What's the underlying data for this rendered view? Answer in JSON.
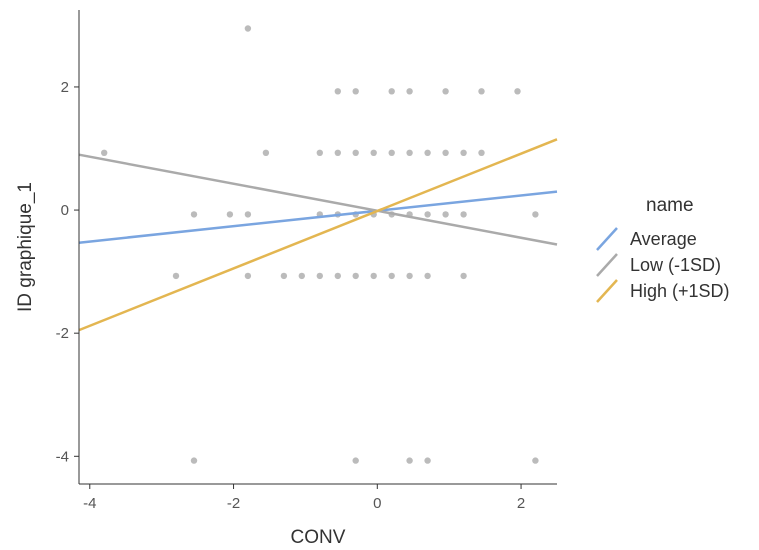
{
  "chart_data": {
    "type": "scatter",
    "xlabel": "CONV",
    "ylabel": "ID graphique_1",
    "xlim": [
      -4.15,
      2.5
    ],
    "ylim": [
      -4.45,
      3.25
    ],
    "x_ticks": [
      -4,
      -2,
      0,
      2
    ],
    "y_ticks": [
      -4,
      -2,
      0,
      2
    ],
    "x_tick_labels": [
      "-4",
      "-2",
      "0",
      "2"
    ],
    "y_tick_labels": [
      "-4",
      "-2",
      "0",
      "2"
    ],
    "grid": false,
    "legend": {
      "title": "name",
      "position": "right",
      "entries": [
        "Average",
        "Low (-1SD)",
        "High (+1SD)"
      ]
    },
    "points": [
      {
        "x": -3.8,
        "y": 0.93
      },
      {
        "x": -1.8,
        "y": 2.95
      },
      {
        "x": -0.55,
        "y": 1.93
      },
      {
        "x": -0.3,
        "y": 1.93
      },
      {
        "x": 0.2,
        "y": 1.93
      },
      {
        "x": 0.45,
        "y": 1.93
      },
      {
        "x": 0.95,
        "y": 1.93
      },
      {
        "x": 1.45,
        "y": 1.93
      },
      {
        "x": 1.95,
        "y": 1.93
      },
      {
        "x": -1.55,
        "y": 0.93
      },
      {
        "x": -0.8,
        "y": 0.93
      },
      {
        "x": -0.55,
        "y": 0.93
      },
      {
        "x": -0.3,
        "y": 0.93
      },
      {
        "x": -0.05,
        "y": 0.93
      },
      {
        "x": 0.2,
        "y": 0.93
      },
      {
        "x": 0.45,
        "y": 0.93
      },
      {
        "x": 0.7,
        "y": 0.93
      },
      {
        "x": 0.95,
        "y": 0.93
      },
      {
        "x": 1.2,
        "y": 0.93
      },
      {
        "x": 1.45,
        "y": 0.93
      },
      {
        "x": -2.55,
        "y": -0.07
      },
      {
        "x": -2.05,
        "y": -0.07
      },
      {
        "x": -1.8,
        "y": -0.07
      },
      {
        "x": -0.8,
        "y": -0.07
      },
      {
        "x": -0.55,
        "y": -0.07
      },
      {
        "x": -0.3,
        "y": -0.07
      },
      {
        "x": -0.05,
        "y": -0.07
      },
      {
        "x": 0.2,
        "y": -0.07
      },
      {
        "x": 0.45,
        "y": -0.07
      },
      {
        "x": 0.7,
        "y": -0.07
      },
      {
        "x": 0.95,
        "y": -0.07
      },
      {
        "x": 1.2,
        "y": -0.07
      },
      {
        "x": 2.2,
        "y": -0.07
      },
      {
        "x": -2.8,
        "y": -1.07
      },
      {
        "x": -1.8,
        "y": -1.07
      },
      {
        "x": -1.3,
        "y": -1.07
      },
      {
        "x": -1.05,
        "y": -1.07
      },
      {
        "x": -0.8,
        "y": -1.07
      },
      {
        "x": -0.55,
        "y": -1.07
      },
      {
        "x": -0.3,
        "y": -1.07
      },
      {
        "x": -0.05,
        "y": -1.07
      },
      {
        "x": 0.2,
        "y": -1.07
      },
      {
        "x": 0.45,
        "y": -1.07
      },
      {
        "x": 0.7,
        "y": -1.07
      },
      {
        "x": 1.2,
        "y": -1.07
      },
      {
        "x": -2.55,
        "y": -4.07
      },
      {
        "x": -0.3,
        "y": -4.07
      },
      {
        "x": 0.45,
        "y": -4.07
      },
      {
        "x": 0.7,
        "y": -4.07
      },
      {
        "x": 2.2,
        "y": -4.07
      }
    ],
    "series": [
      {
        "name": "Average",
        "color": "#7aa5e0",
        "x": [
          -4.15,
          2.5
        ],
        "y": [
          -0.53,
          0.3
        ]
      },
      {
        "name": "Low (-1SD)",
        "color": "#aaaaaa",
        "x": [
          -4.15,
          2.5
        ],
        "y": [
          0.9,
          -0.56
        ]
      },
      {
        "name": "High (+1SD)",
        "color": "#e3b651",
        "x": [
          -4.15,
          2.5
        ],
        "y": [
          -1.95,
          1.15
        ]
      }
    ],
    "point_color": "#555555"
  }
}
